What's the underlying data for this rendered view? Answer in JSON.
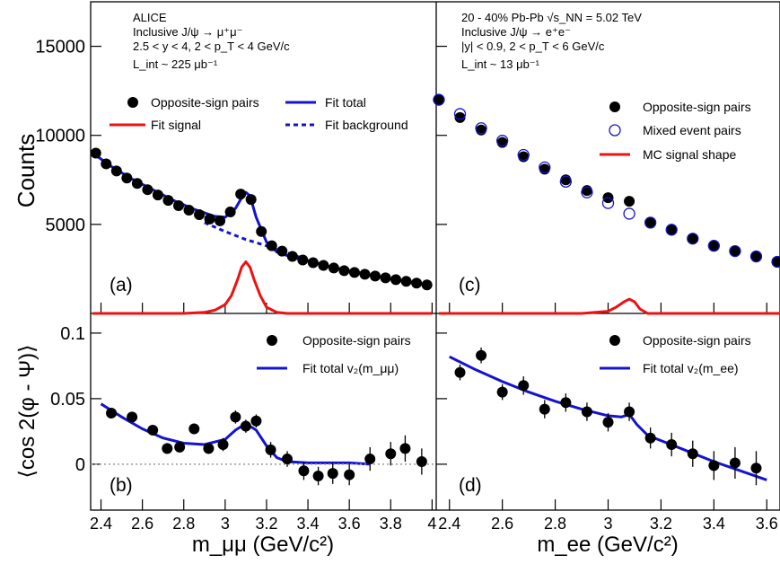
{
  "figure": {
    "ylabel_top": "Counts",
    "ylabel_bottom": "⟨cos 2(φ - Ψ)⟩",
    "xlabel_left": "m_μμ (GeV/c²)",
    "xlabel_right": "m_ee (GeV/c²)"
  },
  "chart_data": [
    {
      "panel": "(a)",
      "type": "scatter",
      "header": [
        "ALICE",
        "Inclusive J/ψ → μ⁺μ⁻",
        "2.5 < y < 4,  2 < p_T < 4 GeV/c",
        "L_int ~ 225 μb⁻¹"
      ],
      "xlim": [
        2.35,
        4.02
      ],
      "ylim": [
        0,
        17500
      ],
      "yticks": [
        5000,
        10000,
        15000
      ],
      "legend": [
        "Opposite-sign pairs",
        "Fit total",
        "Fit signal",
        "Fit background"
      ],
      "colors": {
        "data": "#000000",
        "fit_total": "#1414cc",
        "signal": "#ee1111",
        "background": "#1414cc"
      },
      "series": [
        {
          "name": "Opposite-sign pairs",
          "kind": "points",
          "x": [
            2.375,
            2.425,
            2.475,
            2.525,
            2.575,
            2.625,
            2.675,
            2.725,
            2.775,
            2.825,
            2.875,
            2.925,
            2.975,
            3.025,
            3.075,
            3.125,
            3.175,
            3.225,
            3.275,
            3.325,
            3.375,
            3.425,
            3.475,
            3.525,
            3.575,
            3.625,
            3.675,
            3.725,
            3.775,
            3.825,
            3.875,
            3.925,
            3.975
          ],
          "y": [
            9000,
            8400,
            8000,
            7600,
            7300,
            6950,
            6650,
            6350,
            6050,
            5800,
            5550,
            5300,
            5200,
            5700,
            6700,
            6400,
            4600,
            3800,
            3500,
            3200,
            3000,
            2850,
            2700,
            2550,
            2400,
            2300,
            2200,
            2100,
            2000,
            1900,
            1800,
            1700,
            1600
          ]
        },
        {
          "name": "Fit total",
          "kind": "line",
          "x": [
            2.36,
            2.45,
            2.55,
            2.65,
            2.75,
            2.85,
            2.95,
            3.0,
            3.05,
            3.08,
            3.1,
            3.12,
            3.15,
            3.2,
            3.25,
            3.3,
            3.4,
            3.5,
            3.6,
            3.7,
            3.8,
            3.9,
            4.0
          ],
          "y": [
            9000,
            8250,
            7550,
            6950,
            6350,
            5850,
            5450,
            5400,
            5900,
            6500,
            6800,
            6600,
            5400,
            4000,
            3450,
            3250,
            2950,
            2650,
            2400,
            2150,
            1950,
            1750,
            1550
          ]
        },
        {
          "name": "Fit background",
          "kind": "dashed",
          "x": [
            2.9,
            3.0,
            3.1,
            3.2,
            3.3,
            3.4,
            3.5,
            3.6
          ],
          "y": [
            5100,
            4600,
            4150,
            3800,
            3400,
            3000,
            2650,
            2350
          ]
        },
        {
          "name": "Fit signal",
          "kind": "line",
          "x": [
            2.36,
            2.8,
            2.9,
            2.95,
            3.0,
            3.03,
            3.06,
            3.08,
            3.1,
            3.12,
            3.14,
            3.17,
            3.2,
            3.25,
            3.3,
            4.0
          ],
          "y": [
            0,
            0,
            60,
            180,
            500,
            1000,
            1900,
            2600,
            2900,
            2600,
            1900,
            1000,
            350,
            60,
            0,
            0
          ]
        }
      ]
    },
    {
      "panel": "(c)",
      "type": "scatter",
      "header": [
        "20 - 40% Pb-Pb √s_NN = 5.02 TeV",
        "Inclusive J/ψ → e⁺e⁻",
        "|y| < 0.9,  2 < p_T < 6 GeV/c",
        "L_int ~ 13 μb⁻¹"
      ],
      "xlim": [
        2.35,
        3.65
      ],
      "ylim": [
        0,
        17500
      ],
      "legend": [
        "Opposite-sign pairs",
        "Mixed event pairs",
        "MC signal shape"
      ],
      "colors": {
        "data": "#000000",
        "mixed": "#1414cc",
        "signal": "#ee1111"
      },
      "series": [
        {
          "name": "Opposite-sign pairs",
          "kind": "points",
          "x": [
            2.36,
            2.44,
            2.52,
            2.6,
            2.68,
            2.76,
            2.84,
            2.92,
            3.0,
            3.08,
            3.16,
            3.24,
            3.32,
            3.4,
            3.48,
            3.56,
            3.64
          ],
          "y": [
            12000,
            11000,
            10300,
            9600,
            8800,
            8100,
            7500,
            6900,
            6500,
            6300,
            5100,
            4700,
            4200,
            3800,
            3500,
            3200,
            2900
          ]
        },
        {
          "name": "Mixed event pairs",
          "kind": "open",
          "x": [
            2.36,
            2.44,
            2.52,
            2.6,
            2.68,
            2.76,
            2.84,
            2.92,
            3.0,
            3.08,
            3.16,
            3.24,
            3.32,
            3.4,
            3.48,
            3.56,
            3.64
          ],
          "y": [
            12000,
            11200,
            10400,
            9700,
            8900,
            8200,
            7400,
            6800,
            6200,
            5600,
            5100,
            4700,
            4200,
            3800,
            3500,
            3200,
            2900
          ]
        },
        {
          "name": "MC signal shape",
          "kind": "line",
          "x": [
            2.36,
            2.9,
            3.0,
            3.03,
            3.06,
            3.08,
            3.1,
            3.12,
            3.15,
            3.65
          ],
          "y": [
            0,
            0,
            120,
            350,
            650,
            800,
            650,
            250,
            0,
            0
          ]
        }
      ]
    },
    {
      "panel": "(b)",
      "type": "scatter",
      "xlim": [
        2.35,
        4.02
      ],
      "ylim": [
        -0.035,
        0.115
      ],
      "xticks": [
        2.4,
        2.6,
        2.8,
        3,
        3.2,
        3.4,
        3.6,
        3.8,
        4
      ],
      "yticks": [
        0,
        0.05,
        0.1
      ],
      "legend": [
        "Opposite-sign pairs",
        "Fit total v₂(m_μμ)"
      ],
      "series": [
        {
          "name": "Opposite-sign pairs",
          "kind": "points",
          "x": [
            2.45,
            2.55,
            2.65,
            2.72,
            2.78,
            2.85,
            2.92,
            2.99,
            3.05,
            3.1,
            3.15,
            3.22,
            3.3,
            3.38,
            3.45,
            3.52,
            3.6,
            3.7,
            3.8,
            3.87,
            3.95
          ],
          "y": [
            0.039,
            0.036,
            0.026,
            0.012,
            0.013,
            0.027,
            0.012,
            0.015,
            0.036,
            0.029,
            0.033,
            0.011,
            0.004,
            -0.005,
            -0.009,
            -0.007,
            -0.008,
            0.004,
            0.008,
            0.012,
            0.002
          ],
          "err": [
            0.004,
            0.004,
            0.004,
            0.004,
            0.004,
            0.004,
            0.004,
            0.005,
            0.005,
            0.005,
            0.005,
            0.006,
            0.006,
            0.007,
            0.007,
            0.008,
            0.008,
            0.009,
            0.009,
            0.01,
            0.01
          ]
        },
        {
          "name": "Fit total v₂(m_μμ)",
          "kind": "line",
          "x": [
            2.4,
            2.5,
            2.6,
            2.7,
            2.8,
            2.9,
            3.0,
            3.05,
            3.1,
            3.15,
            3.2,
            3.25,
            3.3,
            3.4,
            3.5,
            3.6,
            3.7
          ],
          "y": [
            0.046,
            0.036,
            0.027,
            0.02,
            0.016,
            0.015,
            0.019,
            0.026,
            0.031,
            0.026,
            0.014,
            0.005,
            0.002,
            0.001,
            0.001,
            0.001,
            0.0
          ]
        },
        {
          "name": "baseline",
          "kind": "dotted",
          "x": [
            2.35,
            4.02
          ],
          "y": [
            0,
            0
          ]
        }
      ]
    },
    {
      "panel": "(d)",
      "type": "scatter",
      "xlim": [
        2.35,
        3.65
      ],
      "ylim": [
        -0.035,
        0.115
      ],
      "xticks": [
        2.4,
        2.6,
        2.8,
        3,
        3.2,
        3.4,
        3.6
      ],
      "legend": [
        "Opposite-sign pairs",
        "Fit total v₂(m_ee)"
      ],
      "series": [
        {
          "name": "Opposite-sign pairs",
          "kind": "points",
          "x": [
            2.44,
            2.52,
            2.6,
            2.68,
            2.76,
            2.84,
            2.92,
            3.0,
            3.08,
            3.16,
            3.24,
            3.32,
            3.4,
            3.48,
            3.56
          ],
          "y": [
            0.07,
            0.083,
            0.055,
            0.06,
            0.042,
            0.047,
            0.04,
            0.032,
            0.04,
            0.02,
            0.015,
            0.008,
            -0.001,
            0.001,
            -0.003
          ],
          "err": [
            0.006,
            0.006,
            0.006,
            0.007,
            0.007,
            0.007,
            0.007,
            0.007,
            0.007,
            0.008,
            0.009,
            0.01,
            0.011,
            0.012,
            0.013
          ]
        },
        {
          "name": "Fit total v₂(m_ee)",
          "kind": "line",
          "x": [
            2.4,
            2.5,
            2.6,
            2.7,
            2.8,
            2.9,
            3.0,
            3.05,
            3.08,
            3.11,
            3.15,
            3.2,
            3.3,
            3.4,
            3.5,
            3.6
          ],
          "y": [
            0.082,
            0.072,
            0.063,
            0.055,
            0.048,
            0.042,
            0.037,
            0.036,
            0.038,
            0.03,
            0.022,
            0.018,
            0.01,
            0.002,
            -0.005,
            -0.012
          ]
        }
      ]
    }
  ]
}
